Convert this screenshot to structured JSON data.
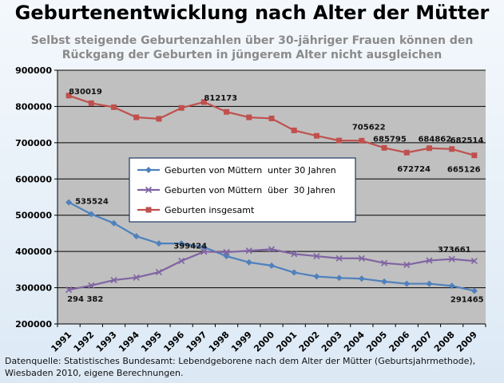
{
  "title": "Geburtenentwicklung nach Alter der Mütter",
  "subtitle_lines": [
    "Selbst steigende Geburtenzahlen über 30-jähriger Frauen können den",
    "Rückgang der Geburten in jüngerem Alter nicht ausgleichen"
  ],
  "source_lines": [
    "Datenquelle: Statistisches Bundesamt: Lebendgeborene nach dem Alter der Mütter (Geburtsjahrmethode),",
    "Wiesbaden 2010, eigene Berechnungen."
  ],
  "colors": {
    "plot_bg": "#c0c0c0",
    "under30": "#4f81bd",
    "over30": "#8064a2",
    "total": "#c0504d"
  },
  "chart_data": {
    "type": "line",
    "categories": [
      "1991",
      "1992",
      "1993",
      "1994",
      "1995",
      "1996",
      "1997",
      "1998",
      "1999",
      "2000",
      "2001",
      "2002",
      "2003",
      "2004",
      "2005",
      "2006",
      "2007",
      "2008",
      "2009"
    ],
    "ylim": [
      200000,
      900000
    ],
    "yticks": [
      "200000",
      "300000",
      "400000",
      "500000",
      "600000",
      "700000",
      "800000",
      "900000"
    ],
    "grid": true,
    "legend_position": "center-left",
    "series": [
      {
        "name": "Geburten von Müttern  unter 30 Jahren",
        "color": "#4f81bd",
        "marker": "diamond",
        "values": [
          535524,
          503000,
          478000,
          442000,
          422000,
          422000,
          412000,
          387000,
          370000,
          361000,
          342000,
          331000,
          327000,
          325000,
          317000,
          311000,
          311000,
          305000,
          291465
        ]
      },
      {
        "name": "Geburten von Müttern  über  30 Jahren",
        "color": "#8064a2",
        "marker": "x",
        "values": [
          294382,
          306000,
          321000,
          328000,
          343000,
          374000,
          399424,
          398000,
          402000,
          406000,
          393000,
          387000,
          381000,
          381000,
          368000,
          363000,
          375000,
          379000,
          373661
        ]
      },
      {
        "name": "Geburten insgesamt",
        "color": "#c0504d",
        "marker": "square",
        "values": [
          830019,
          809000,
          798000,
          770000,
          766000,
          796000,
          812173,
          785000,
          770000,
          767000,
          734000,
          719000,
          706000,
          705622,
          685795,
          672724,
          684862,
          682514,
          665126
        ]
      }
    ],
    "data_labels": [
      {
        "series": 2,
        "index": 0,
        "text": "830019"
      },
      {
        "series": 2,
        "index": 6,
        "text": "812173"
      },
      {
        "series": 2,
        "index": 13,
        "text": "705622"
      },
      {
        "series": 2,
        "index": 14,
        "text": "685795"
      },
      {
        "series": 2,
        "index": 15,
        "text": "672724"
      },
      {
        "series": 2,
        "index": 16,
        "text": "684862"
      },
      {
        "series": 2,
        "index": 17,
        "text": "682514"
      },
      {
        "series": 2,
        "index": 18,
        "text": "665126"
      },
      {
        "series": 0,
        "index": 0,
        "text": "535524"
      },
      {
        "series": 0,
        "index": 18,
        "text": "291465"
      },
      {
        "series": 1,
        "index": 0,
        "text": "294 382"
      },
      {
        "series": 1,
        "index": 6,
        "text": "399424"
      },
      {
        "series": 1,
        "index": 18,
        "text": "373661"
      }
    ]
  }
}
